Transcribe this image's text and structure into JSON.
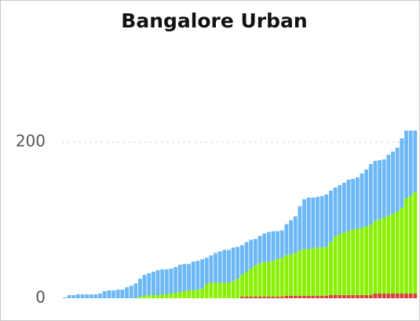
{
  "chart_data": {
    "type": "bar",
    "stacked": true,
    "title": "Bangalore Urban",
    "ylim": [
      0,
      330
    ],
    "yticks": [
      0,
      200
    ],
    "grid": true,
    "series": [
      {
        "color": "#d9403a",
        "values": [
          0,
          0,
          0,
          0,
          0,
          0,
          0,
          0,
          0,
          0,
          0,
          0,
          0,
          0,
          0,
          0,
          0,
          0,
          0,
          0,
          0,
          0,
          0,
          0,
          0,
          0,
          0,
          0,
          0,
          0,
          0,
          0,
          0,
          0,
          0,
          0,
          0,
          0,
          0,
          0,
          2,
          2,
          2,
          2,
          2,
          2,
          2,
          2,
          2,
          2,
          3,
          3,
          3,
          3,
          3,
          3,
          3,
          3,
          3,
          3,
          4,
          4,
          4,
          4,
          4,
          4,
          4,
          4,
          4,
          4,
          6,
          6,
          6,
          6,
          6,
          6,
          6,
          6,
          6,
          6
        ]
      },
      {
        "color": "#88f000",
        "values": [
          0,
          0,
          0,
          0,
          0,
          0,
          0,
          0,
          0,
          0,
          0,
          0,
          0,
          0,
          0,
          0,
          0,
          2,
          3,
          4,
          4,
          4,
          5,
          5,
          6,
          7,
          8,
          9,
          10,
          10,
          11,
          12,
          18,
          20,
          20,
          20,
          20,
          20,
          22,
          25,
          28,
          32,
          36,
          40,
          43,
          44,
          45,
          46,
          48,
          50,
          52,
          53,
          55,
          58,
          60,
          60,
          61,
          62,
          62,
          63,
          68,
          75,
          78,
          80,
          82,
          84,
          85,
          86,
          88,
          90,
          93,
          95,
          97,
          100,
          102,
          105,
          110,
          122,
          125,
          130
        ]
      },
      {
        "color": "#6cb8f6",
        "values": [
          1,
          4,
          4,
          5,
          5,
          5,
          5,
          5,
          6,
          9,
          10,
          10,
          11,
          11,
          14,
          16,
          19,
          23,
          27,
          28,
          30,
          32,
          32,
          32,
          32,
          33,
          35,
          35,
          34,
          37,
          37,
          38,
          34,
          35,
          38,
          40,
          42,
          42,
          43,
          41,
          38,
          38,
          37,
          34,
          35,
          37,
          38,
          38,
          36,
          35,
          40,
          44,
          47,
          57,
          64,
          66,
          65,
          65,
          66,
          67,
          66,
          63,
          63,
          64,
          66,
          65,
          66,
          70,
          73,
          78,
          77,
          76,
          75,
          78,
          80,
          82,
          89,
          87,
          84,
          79
        ]
      }
    ]
  }
}
